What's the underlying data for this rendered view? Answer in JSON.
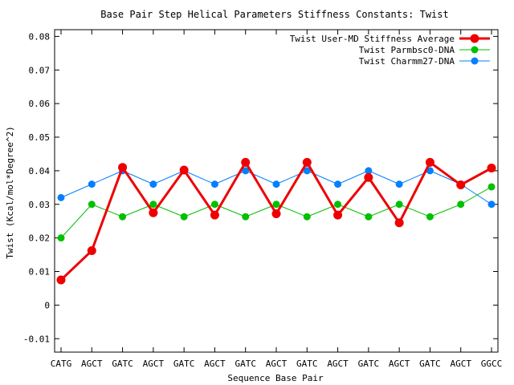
{
  "chart_data": {
    "type": "line",
    "title": "Base Pair Step Helical Parameters Stiffness Constants: Twist",
    "xlabel": "Sequence Base Pair",
    "ylabel": "Twist (Kcal/mol*Degree^2)",
    "ylim": [
      -0.014,
      0.082
    ],
    "yticks": [
      -0.01,
      0,
      0.01,
      0.02,
      0.03,
      0.04,
      0.05,
      0.06,
      0.07,
      0.08
    ],
    "ytick_labels": [
      "-0.01",
      "0",
      "0.01",
      "0.02",
      "0.03",
      "0.04",
      "0.05",
      "0.06",
      "0.07",
      "0.08"
    ],
    "categories": [
      "CATG",
      "AGCT",
      "GATC",
      "AGCT",
      "GATC",
      "AGCT",
      "GATC",
      "AGCT",
      "GATC",
      "AGCT",
      "GATC",
      "AGCT",
      "GATC",
      "AGCT",
      "GGCC"
    ],
    "legend_position": "top-right",
    "grid": false,
    "series": [
      {
        "name": "Twist User-MD Stiffness Average",
        "color": "#ee0000",
        "values": [
          0.0075,
          0.0162,
          0.041,
          0.0275,
          0.0402,
          0.0268,
          0.0425,
          0.0272,
          0.0425,
          0.0268,
          0.038,
          0.0245,
          0.0425,
          0.0358,
          0.0408
        ]
      },
      {
        "name": "Twist Parmbsc0-DNA",
        "color": "#00c000",
        "values": [
          0.02,
          0.03,
          0.0263,
          0.03,
          0.0263,
          0.03,
          0.0263,
          0.03,
          0.0263,
          0.03,
          0.0263,
          0.03,
          0.0263,
          0.03,
          0.0352
        ]
      },
      {
        "name": "Twist Charmm27-DNA",
        "color": "#0080ff",
        "values": [
          0.032,
          0.036,
          0.04,
          0.036,
          0.04,
          0.036,
          0.04,
          0.036,
          0.04,
          0.036,
          0.04,
          0.036,
          0.04,
          0.036,
          0.03
        ]
      }
    ]
  }
}
